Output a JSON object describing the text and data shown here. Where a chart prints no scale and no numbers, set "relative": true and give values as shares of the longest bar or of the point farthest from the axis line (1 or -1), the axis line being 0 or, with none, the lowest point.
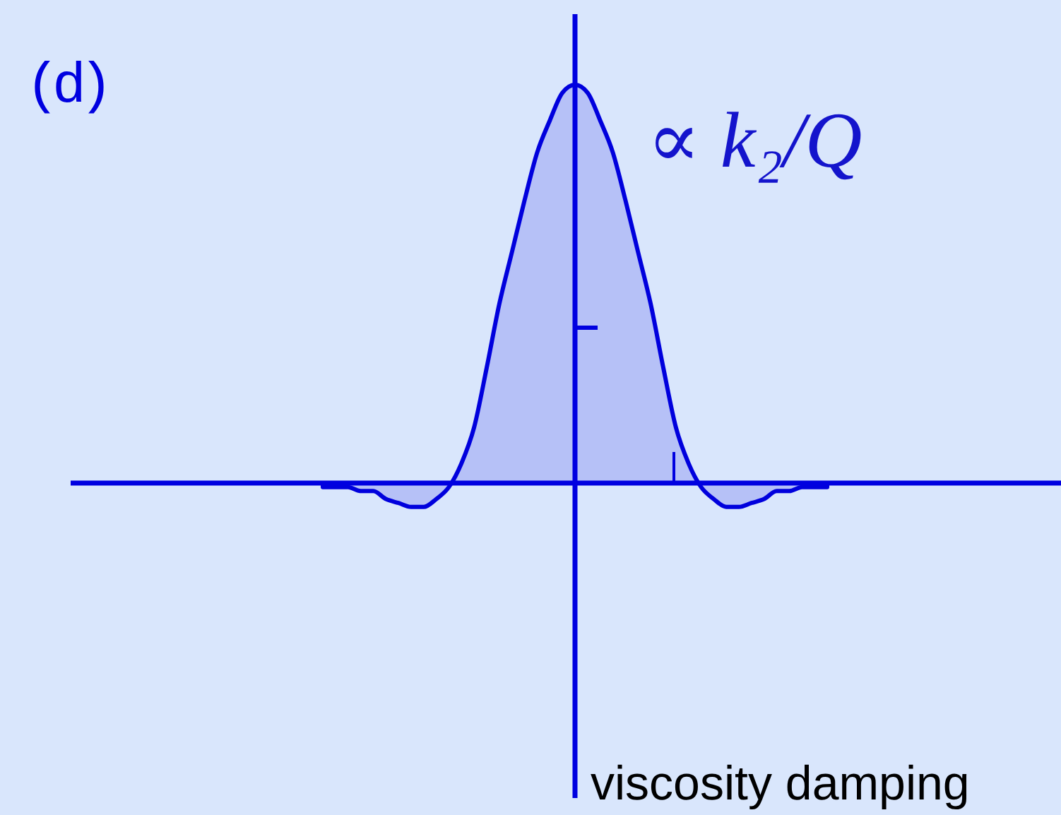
{
  "chart_data": {
    "type": "area",
    "relative": true,
    "title": "(d)",
    "annotations": [
      "∝ k₂/Q",
      "viscosity damping"
    ],
    "ref_lines": [
      {
        "axis": "y",
        "value": 0
      }
    ],
    "categories": [
      null,
      null,
      null,
      null,
      null,
      null,
      null,
      null,
      null,
      null,
      null,
      null,
      null,
      null,
      null,
      null,
      null,
      null,
      null,
      null,
      null,
      null,
      null,
      null,
      null,
      null,
      null,
      null,
      null,
      null,
      null,
      null,
      null,
      null,
      null,
      null,
      null,
      null,
      null,
      null,
      null
    ],
    "values": [
      -0.01,
      -0.01,
      -0.01,
      -0.02,
      -0.02,
      -0.04,
      -0.05,
      -0.06,
      -0.06,
      -0.04,
      -0.01,
      0.05,
      0.14,
      0.29,
      0.45,
      0.58,
      0.71,
      0.83,
      0.91,
      0.98,
      1,
      0.98,
      0.91,
      0.83,
      0.71,
      0.58,
      0.45,
      0.29,
      0.14,
      0.05,
      -0.01,
      -0.04,
      -0.06,
      -0.06,
      -0.05,
      -0.04,
      -0.02,
      -0.02,
      -0.01,
      -0.01,
      -0.01
    ],
    "color": "#0000dd"
  }
}
